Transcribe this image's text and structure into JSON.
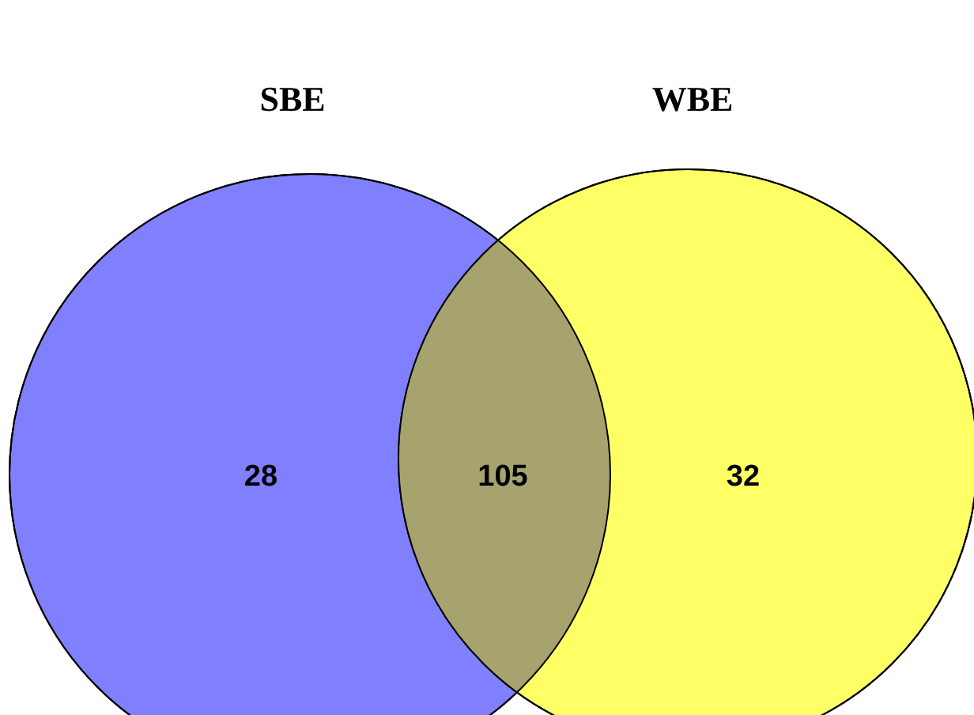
{
  "chart_data": {
    "type": "other",
    "annotations": [
      "SBE",
      "WBE"
    ],
    "categories": [
      null,
      null,
      null
    ],
    "values": [
      28,
      105,
      32
    ],
    "colors": [
      "#8080ff",
      "#a7a36e",
      "#ffff66"
    ],
    "data_labels": true
  }
}
